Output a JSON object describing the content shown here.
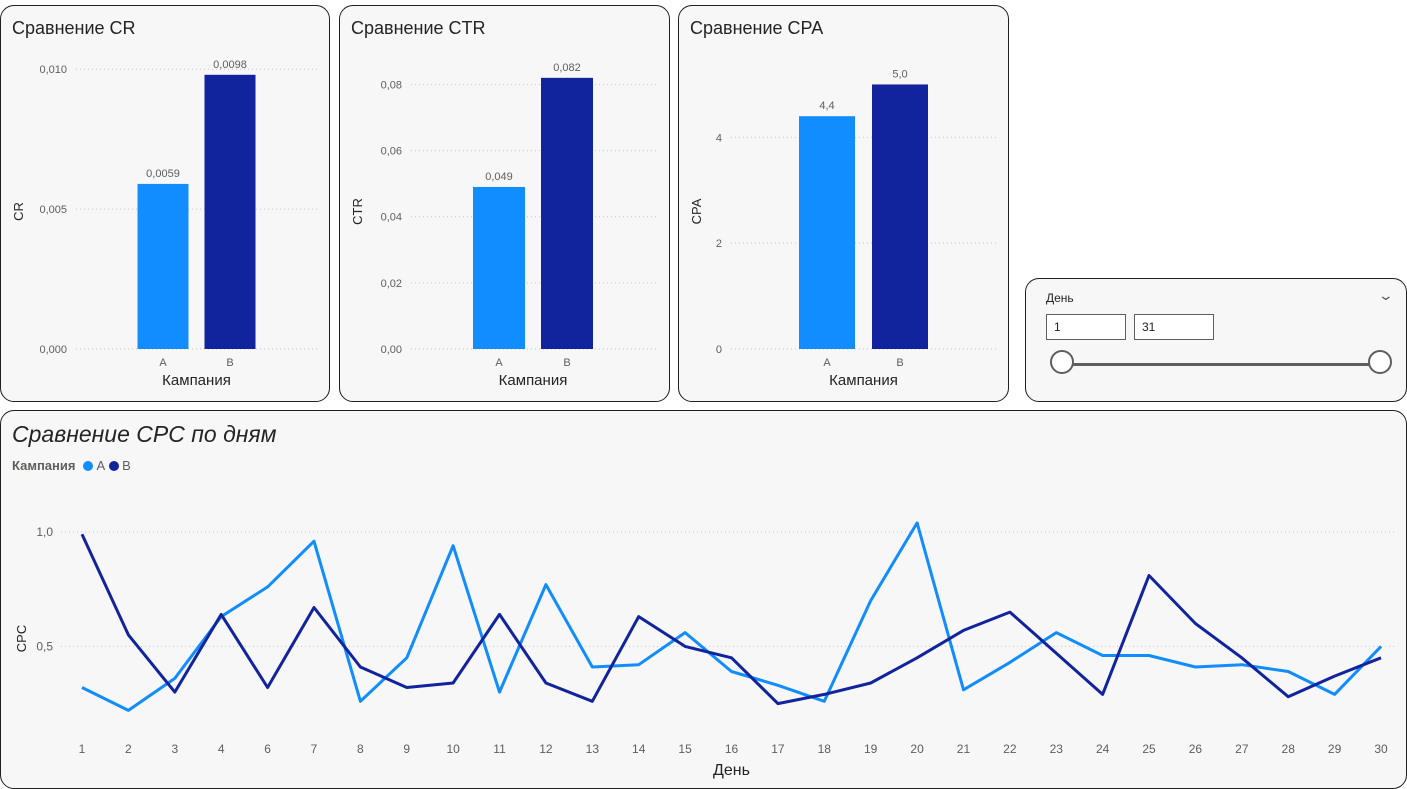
{
  "colors": {
    "A": "#118dff",
    "B": "#12239e",
    "grid": "#c8c6c4"
  },
  "cards": [
    {
      "title": "Сравнение CR",
      "chart_data": {
        "type": "bar",
        "categories": [
          "A",
          "B"
        ],
        "values": [
          0.0059,
          0.0098
        ],
        "value_labels": [
          "0,0059",
          "0,0098"
        ],
        "title": "Сравнение CR",
        "xlabel": "Кампания",
        "ylabel": "CR",
        "ylim": [
          0,
          0.0104
        ],
        "yticks": [
          0,
          0.005,
          0.01
        ],
        "ytick_labels": [
          "0,000",
          "0,005",
          "0,010"
        ],
        "grid": true
      }
    },
    {
      "title": "Сравнение CTR",
      "chart_data": {
        "type": "bar",
        "categories": [
          "A",
          "B"
        ],
        "values": [
          0.049,
          0.082
        ],
        "value_labels": [
          "0,049",
          "0,082"
        ],
        "title": "Сравнение CTR",
        "xlabel": "Кампания",
        "ylabel": "CTR",
        "ylim": [
          0,
          0.088
        ],
        "yticks": [
          0,
          0.02,
          0.04,
          0.06,
          0.08
        ],
        "ytick_labels": [
          "0,00",
          "0,02",
          "0,04",
          "0,06",
          "0,08"
        ],
        "grid": true
      }
    },
    {
      "title": "Сравнение CPA",
      "chart_data": {
        "type": "bar",
        "categories": [
          "A",
          "B"
        ],
        "values": [
          4.4,
          5.0
        ],
        "value_labels": [
          "4,4",
          "5,0"
        ],
        "title": "Сравнение CPA",
        "xlabel": "Кампания",
        "ylabel": "CPA",
        "ylim": [
          0,
          5.5
        ],
        "yticks": [
          0,
          2,
          4
        ],
        "ytick_labels": [
          "0",
          "2",
          "4"
        ],
        "grid": true
      }
    }
  ],
  "slicer": {
    "title": "День",
    "from": "1",
    "to": "31",
    "range": [
      1,
      31
    ],
    "selected": [
      1,
      31
    ]
  },
  "line": {
    "title": "Сравнение CPC по дням",
    "legend_title": "Кампания",
    "chart_data": {
      "type": "line",
      "title": "Сравнение CPC по дням",
      "xlabel": "День",
      "ylabel": "CPC",
      "x": [
        1,
        2,
        3,
        4,
        6,
        7,
        8,
        9,
        10,
        11,
        12,
        13,
        14,
        15,
        16,
        17,
        18,
        19,
        20,
        21,
        22,
        23,
        24,
        25,
        26,
        27,
        28,
        29,
        30
      ],
      "ylim": [
        0.13,
        1.07
      ],
      "yticks": [
        0.5,
        1.0
      ],
      "ytick_labels": [
        "0,5",
        "1,0"
      ],
      "grid": true,
      "legend": "top-left",
      "series": [
        {
          "name": "A",
          "values": [
            0.32,
            0.22,
            0.36,
            0.63,
            0.76,
            0.96,
            0.26,
            0.45,
            0.94,
            0.3,
            0.77,
            0.41,
            0.42,
            0.56,
            0.39,
            0.33,
            0.26,
            0.7,
            1.04,
            0.31,
            0.43,
            0.56,
            0.46,
            0.46,
            0.41,
            0.42,
            0.39,
            0.29,
            0.5
          ]
        },
        {
          "name": "B",
          "values": [
            0.99,
            0.55,
            0.3,
            0.64,
            0.32,
            0.67,
            0.41,
            0.32,
            0.34,
            0.64,
            0.34,
            0.26,
            0.63,
            0.5,
            0.45,
            0.25,
            0.29,
            0.34,
            0.45,
            0.57,
            0.65,
            0.47,
            0.29,
            0.81,
            0.6,
            0.45,
            0.28,
            0.37,
            0.45
          ]
        }
      ]
    }
  }
}
